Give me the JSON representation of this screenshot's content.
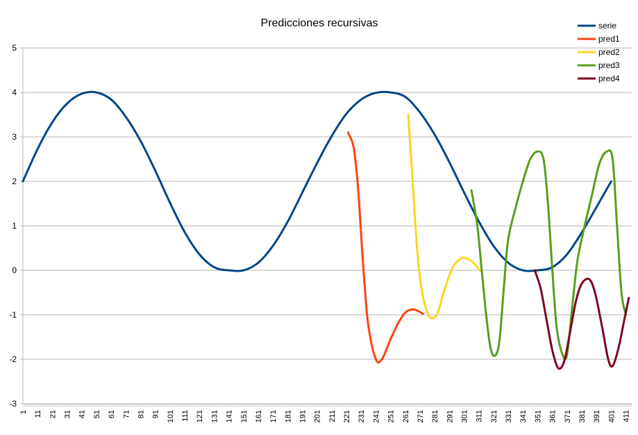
{
  "chart_data": {
    "type": "line",
    "title": "Predicciones recursivas",
    "xlabel": "",
    "ylabel": "",
    "ylim": [
      -3,
      5
    ],
    "xlim": [
      1,
      415
    ],
    "yticks": [
      -3,
      -2,
      -1,
      0,
      1,
      2,
      3,
      4,
      5
    ],
    "xticks": [
      1,
      11,
      21,
      31,
      41,
      51,
      61,
      71,
      81,
      91,
      101,
      111,
      121,
      131,
      141,
      151,
      161,
      171,
      181,
      191,
      201,
      211,
      221,
      231,
      241,
      251,
      261,
      271,
      281,
      291,
      301,
      311,
      321,
      331,
      341,
      351,
      361,
      371,
      381,
      391,
      401,
      411
    ],
    "grid": "horizontal",
    "legend_position": "top-right",
    "series": [
      {
        "name": "serie",
        "color": "#004586",
        "points": [
          [
            1,
            2
          ],
          [
            11,
            2.73
          ],
          [
            21,
            3.33
          ],
          [
            31,
            3.75
          ],
          [
            41,
            3.97
          ],
          [
            51,
            4
          ],
          [
            61,
            3.84
          ],
          [
            71,
            3.45
          ],
          [
            81,
            2.91
          ],
          [
            91,
            2.24
          ],
          [
            101,
            1.52
          ],
          [
            111,
            0.86
          ],
          [
            121,
            0.36
          ],
          [
            131,
            0.07
          ],
          [
            141,
            0.0
          ],
          [
            151,
            0.0
          ],
          [
            161,
            0.17
          ],
          [
            171,
            0.55
          ],
          [
            181,
            1.09
          ],
          [
            191,
            1.75
          ],
          [
            201,
            2.41
          ],
          [
            211,
            3.02
          ],
          [
            221,
            3.52
          ],
          [
            231,
            3.84
          ],
          [
            241,
            3.99
          ],
          [
            251,
            4.0
          ],
          [
            261,
            3.9
          ],
          [
            271,
            3.55
          ],
          [
            281,
            3.05
          ],
          [
            291,
            2.43
          ],
          [
            301,
            1.75
          ],
          [
            311,
            1.1
          ],
          [
            321,
            0.55
          ],
          [
            331,
            0.17
          ],
          [
            341,
            0.0
          ],
          [
            351,
            0.0
          ],
          [
            361,
            0.07
          ],
          [
            371,
            0.36
          ],
          [
            381,
            0.85
          ],
          [
            391,
            1.42
          ],
          [
            401,
            2.0
          ]
        ]
      },
      {
        "name": "pred1",
        "color": "#ff420e",
        "points": [
          [
            222,
            3.1
          ],
          [
            226,
            2.75
          ],
          [
            229,
            1.8
          ],
          [
            232,
            0.3
          ],
          [
            235,
            -1.0
          ],
          [
            238,
            -1.65
          ],
          [
            241,
            -2.0
          ],
          [
            243,
            -2.07
          ],
          [
            246,
            -1.95
          ],
          [
            251,
            -1.55
          ],
          [
            256,
            -1.2
          ],
          [
            261,
            -0.95
          ],
          [
            266,
            -0.88
          ],
          [
            270,
            -0.92
          ],
          [
            273,
            -0.98
          ]
        ]
      },
      {
        "name": "pred2",
        "color": "#ffd320",
        "points": [
          [
            263,
            3.5
          ],
          [
            266,
            2.0
          ],
          [
            269,
            0.5
          ],
          [
            272,
            -0.4
          ],
          [
            276,
            -0.95
          ],
          [
            279,
            -1.08
          ],
          [
            283,
            -0.95
          ],
          [
            288,
            -0.4
          ],
          [
            293,
            0.05
          ],
          [
            298,
            0.25
          ],
          [
            302,
            0.28
          ],
          [
            307,
            0.18
          ],
          [
            312,
            -0.02
          ]
        ]
      },
      {
        "name": "pred3",
        "color": "#579d1c",
        "points": [
          [
            306,
            1.8
          ],
          [
            310,
            1.0
          ],
          [
            313,
            0.0
          ],
          [
            316,
            -1.0
          ],
          [
            319,
            -1.75
          ],
          [
            322,
            -1.92
          ],
          [
            325,
            -1.6
          ],
          [
            328,
            -0.4
          ],
          [
            331,
            0.7
          ],
          [
            336,
            1.4
          ],
          [
            341,
            2.0
          ],
          [
            346,
            2.5
          ],
          [
            351,
            2.67
          ],
          [
            355,
            2.5
          ],
          [
            358,
            1.5
          ],
          [
            361,
            0.0
          ],
          [
            364,
            -1.3
          ],
          [
            368,
            -1.9
          ],
          [
            371,
            -1.9
          ],
          [
            374,
            -1.0
          ],
          [
            378,
            0.2
          ],
          [
            383,
            1.0
          ],
          [
            388,
            1.7
          ],
          [
            393,
            2.4
          ],
          [
            398,
            2.67
          ],
          [
            402,
            2.5
          ],
          [
            405,
            1.0
          ],
          [
            408,
            -0.5
          ],
          [
            411,
            -1.0
          ]
        ]
      },
      {
        "name": "pred4",
        "color": "#7e0021",
        "points": [
          [
            349,
            0.0
          ],
          [
            353,
            -0.4
          ],
          [
            357,
            -1.1
          ],
          [
            361,
            -1.8
          ],
          [
            365,
            -2.2
          ],
          [
            369,
            -2.05
          ],
          [
            373,
            -1.4
          ],
          [
            377,
            -0.7
          ],
          [
            381,
            -0.3
          ],
          [
            386,
            -0.2
          ],
          [
            390,
            -0.5
          ],
          [
            395,
            -1.3
          ],
          [
            399,
            -2.0
          ],
          [
            402,
            -2.15
          ],
          [
            406,
            -1.75
          ],
          [
            410,
            -1.1
          ],
          [
            413,
            -0.62
          ]
        ]
      }
    ]
  }
}
